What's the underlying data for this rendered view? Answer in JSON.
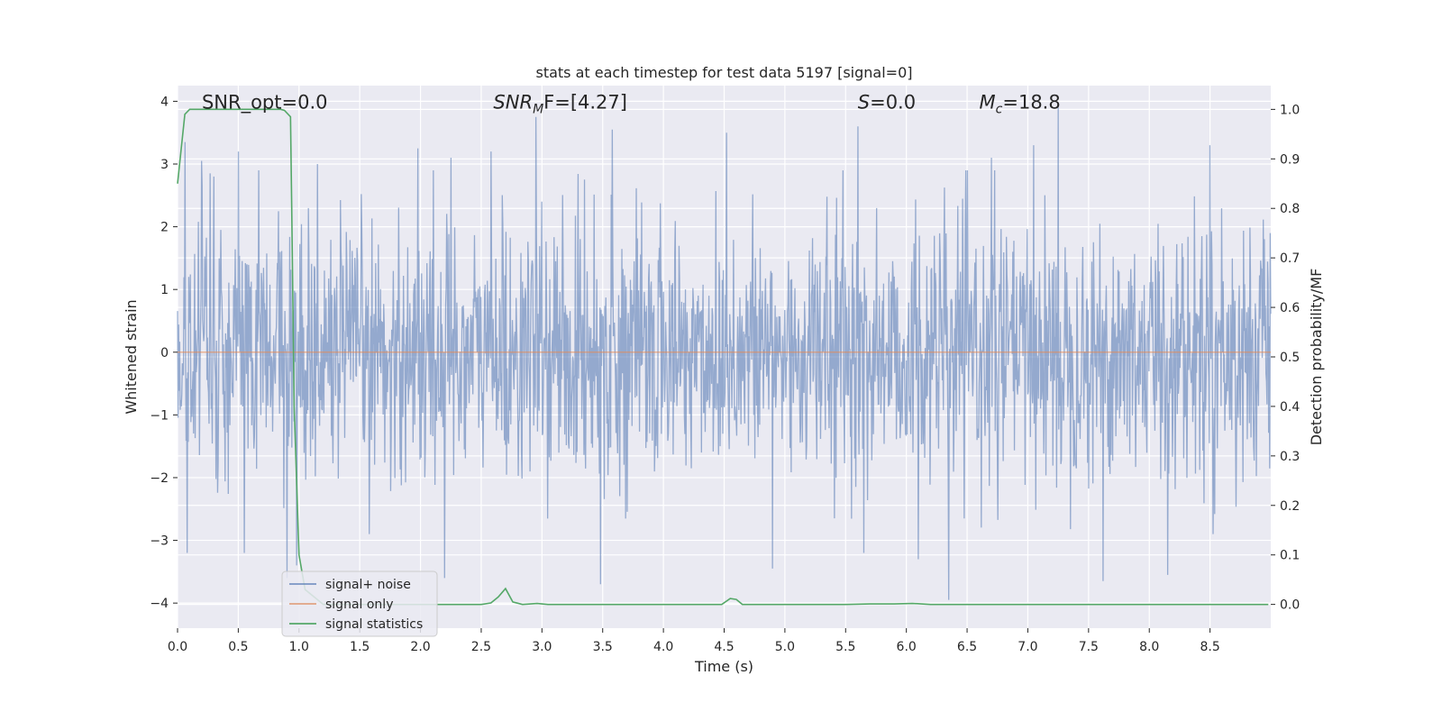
{
  "chart_data": {
    "type": "line",
    "title": "stats at each timestep for test data 5197 [signal=0]",
    "xlabel": "Time (s)",
    "ylabel": "Whitened strain",
    "ylabel_right": "Detection probability/MF",
    "xlim": [
      0.0,
      9.0
    ],
    "ylim": [
      -4.4,
      4.25
    ],
    "ylim_right": [
      -0.048,
      1.048
    ],
    "grid": true,
    "legend_position": "lower-left",
    "x_ticks": [
      "0.0",
      "0.5",
      "1.0",
      "1.5",
      "2.0",
      "2.5",
      "3.0",
      "3.5",
      "4.0",
      "4.5",
      "5.0",
      "5.5",
      "6.0",
      "6.5",
      "7.0",
      "7.5",
      "8.0",
      "8.5"
    ],
    "y_ticks": [
      "4",
      "3",
      "2",
      "1",
      "0",
      "−1",
      "−2",
      "−3",
      "−4"
    ],
    "y_ticks_right": [
      "1.0",
      "0.9",
      "0.8",
      "0.7",
      "0.6",
      "0.5",
      "0.4",
      "0.3",
      "0.2",
      "0.1",
      "0.0"
    ],
    "annotations": [
      {
        "text": "SNR_opt=0.0",
        "x": 0.2,
        "y": 4.0
      },
      {
        "main": "SNR",
        "sub": "M",
        "rest": "F=[4.27]",
        "x": 2.6,
        "y": 4.0
      },
      {
        "main": "S",
        "rest": "=0.0",
        "x": 5.6,
        "y": 4.0
      },
      {
        "main": "M",
        "sub": "c",
        "rest": "=18.8",
        "x": 6.6,
        "y": 4.0
      }
    ],
    "series": [
      {
        "name": "signal+ noise",
        "axis": "left",
        "color": "#4c72b0",
        "noise_envelope": {
          "t_start": 0.0,
          "t_end": 9.0,
          "count": 2048,
          "std": 1.0
        },
        "x": [
          0.06,
          0.08,
          0.2,
          0.27,
          0.5,
          0.55,
          0.9,
          0.98,
          1.15,
          1.98,
          2.2,
          2.25,
          2.58,
          2.95,
          3.48,
          3.58,
          4.52,
          4.9,
          5.6,
          5.65,
          6.1,
          6.1,
          6.35,
          6.7,
          7.05,
          7.25,
          7.62,
          8.15,
          8.5
        ],
        "values": [
          3.35,
          -3.2,
          3.05,
          2.85,
          3.2,
          -3.2,
          -3.6,
          -3.4,
          3.0,
          3.25,
          -3.6,
          3.1,
          3.2,
          3.75,
          -3.7,
          3.55,
          3.5,
          -3.45,
          3.6,
          -3.2,
          3.45,
          -3.3,
          -3.95,
          3.1,
          3.3,
          3.9,
          -3.65,
          -3.55,
          3.3
        ]
      },
      {
        "name": "signal only",
        "axis": "left",
        "color": "#dd8452",
        "x": [
          0.0,
          9.0
        ],
        "values": [
          0.0,
          0.0
        ]
      },
      {
        "name": "signal statistics",
        "axis": "right",
        "color": "#55a868",
        "x": [
          0.0,
          0.06,
          0.1,
          0.2,
          0.5,
          0.85,
          0.88,
          0.93,
          0.94,
          0.96,
          1.0,
          1.05,
          1.2,
          1.5,
          2.0,
          2.5,
          2.58,
          2.64,
          2.7,
          2.76,
          2.84,
          2.96,
          3.05,
          3.5,
          4.0,
          4.48,
          4.55,
          4.6,
          4.65,
          5.0,
          5.5,
          5.7,
          5.9,
          6.05,
          6.2,
          6.5,
          7.0,
          7.5,
          8.0,
          8.5,
          8.98
        ],
        "values": [
          0.85,
          0.99,
          1.0,
          1.0,
          1.0,
          1.0,
          0.998,
          0.985,
          0.8,
          0.4,
          0.1,
          0.03,
          0.0,
          0.0,
          0.0,
          0.0,
          0.003,
          0.015,
          0.032,
          0.005,
          0.0,
          0.002,
          0.0,
          0.0,
          0.0,
          0.0,
          0.012,
          0.01,
          0.0,
          0.0,
          0.0,
          0.001,
          0.001,
          0.002,
          0.0,
          0.0,
          0.0,
          0.0,
          0.0,
          0.0,
          0.0
        ]
      }
    ]
  }
}
